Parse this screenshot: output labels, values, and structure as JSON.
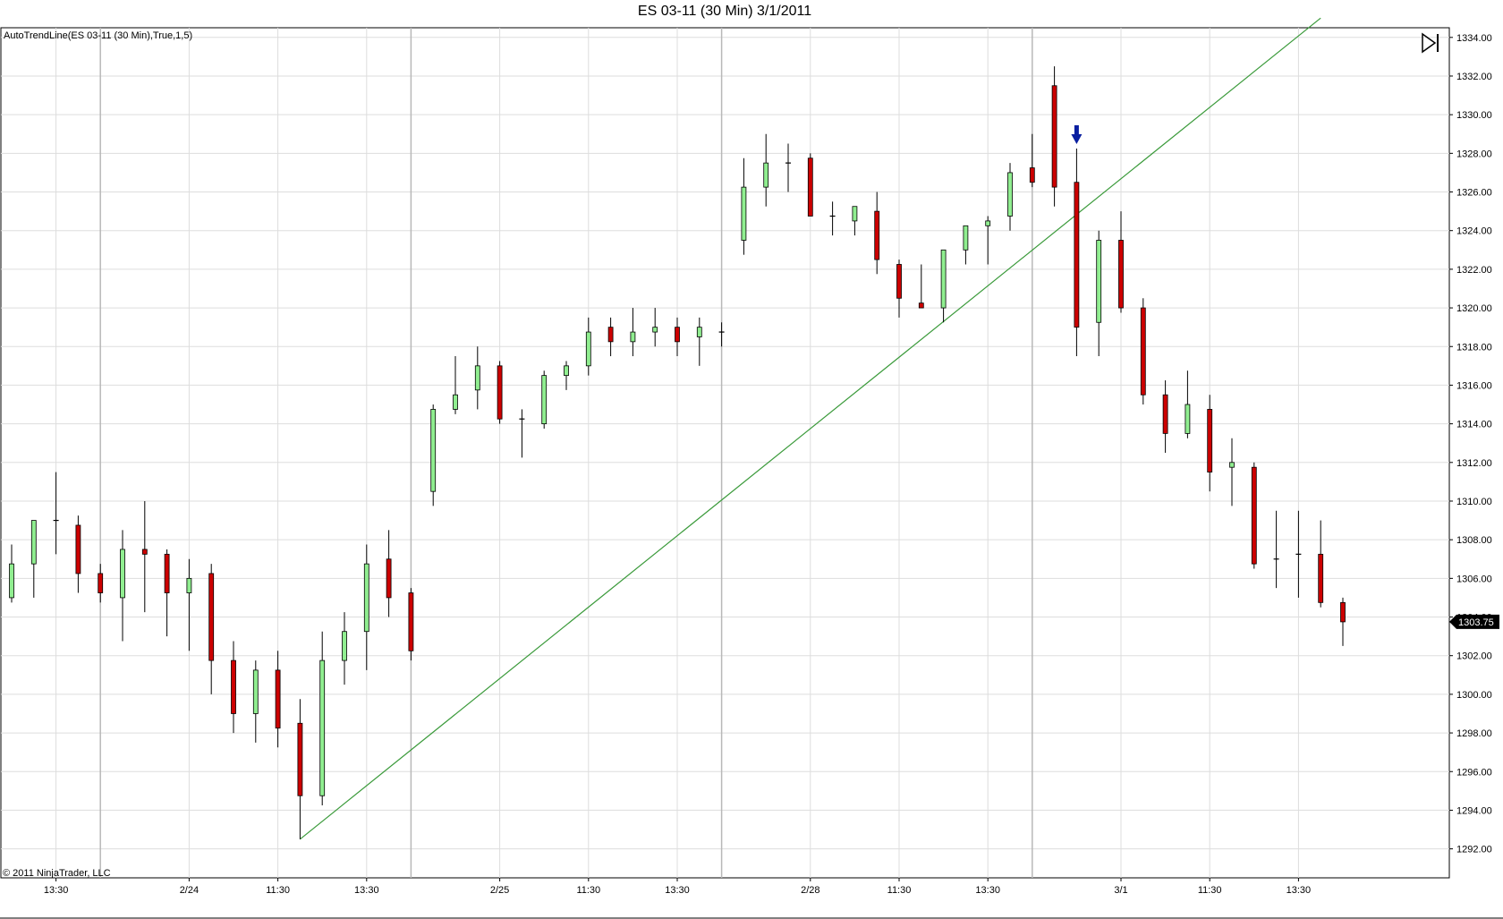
{
  "title": "ES 03-11 (30 Min)  3/1/2011",
  "indicator_label": "AutoTrendLine(ES 03-11 (30 Min),True,1,5)",
  "copyright": "© 2011 NinjaTrader, LLC",
  "last_price_label": "1303.75",
  "colors": {
    "up": "#90EE90",
    "down": "#CC0000",
    "trend": "#3A9A3A",
    "arrow": "#0A1FA0"
  },
  "chart_data": {
    "type": "candlestick",
    "symbol": "ES 03-11",
    "interval": "30 Min",
    "ylim": [
      1290.5,
      1334.5
    ],
    "y_ticks": [
      "1334.00",
      "1332.00",
      "1330.00",
      "1328.00",
      "1326.00",
      "1324.00",
      "1322.00",
      "1320.00",
      "1318.00",
      "1316.00",
      "1314.00",
      "1312.00",
      "1310.00",
      "1308.00",
      "1306.00",
      "1304.00",
      "1302.00",
      "1300.00",
      "1298.00",
      "1296.00",
      "1294.00",
      "1292.00"
    ],
    "x_ticks": [
      {
        "label": "13:30",
        "bar": 2
      },
      {
        "label": "2/24",
        "bar": 8
      },
      {
        "label": "11:30",
        "bar": 12
      },
      {
        "label": "13:30",
        "bar": 16
      },
      {
        "label": "2/25",
        "bar": 22
      },
      {
        "label": "11:30",
        "bar": 26
      },
      {
        "label": "13:30",
        "bar": 30
      },
      {
        "label": "2/28",
        "bar": 36
      },
      {
        "label": "11:30",
        "bar": 40
      },
      {
        "label": "13:30",
        "bar": 44
      },
      {
        "label": "3/1",
        "bar": 50
      },
      {
        "label": "11:30",
        "bar": 54
      },
      {
        "label": "13:30",
        "bar": 58
      }
    ],
    "session_breaks": [
      4,
      18,
      32,
      46
    ],
    "last_price": 1303.75,
    "trend_line": {
      "from": {
        "bar": 13,
        "price": 1292.5
      },
      "to": {
        "bar": 59,
        "price": 1335.0
      }
    },
    "signal_arrow": {
      "bar": 48,
      "direction": "down"
    },
    "candles": [
      {
        "o": 1305.0,
        "h": 1307.75,
        "l": 1304.75,
        "c": 1306.75
      },
      {
        "o": 1306.75,
        "h": 1309.0,
        "l": 1305.0,
        "c": 1309.0
      },
      {
        "o": 1309.0,
        "h": 1311.5,
        "l": 1307.25,
        "c": 1309.0
      },
      {
        "o": 1308.75,
        "h": 1309.25,
        "l": 1305.25,
        "c": 1306.25
      },
      {
        "o": 1306.25,
        "h": 1306.75,
        "l": 1304.75,
        "c": 1305.25
      },
      {
        "o": 1305.0,
        "h": 1308.5,
        "l": 1302.75,
        "c": 1307.5
      },
      {
        "o": 1307.5,
        "h": 1310.0,
        "l": 1304.25,
        "c": 1307.25
      },
      {
        "o": 1307.25,
        "h": 1307.5,
        "l": 1303.0,
        "c": 1305.25
      },
      {
        "o": 1305.25,
        "h": 1307.0,
        "l": 1302.25,
        "c": 1306.0
      },
      {
        "o": 1306.25,
        "h": 1306.75,
        "l": 1300.0,
        "c": 1301.75
      },
      {
        "o": 1301.75,
        "h": 1302.75,
        "l": 1298.0,
        "c": 1299.0
      },
      {
        "o": 1299.0,
        "h": 1301.75,
        "l": 1297.5,
        "c": 1301.25
      },
      {
        "o": 1301.25,
        "h": 1302.25,
        "l": 1297.25,
        "c": 1298.25
      },
      {
        "o": 1298.5,
        "h": 1299.75,
        "l": 1292.5,
        "c": 1294.75
      },
      {
        "o": 1294.75,
        "h": 1303.25,
        "l": 1294.25,
        "c": 1301.75
      },
      {
        "o": 1301.75,
        "h": 1304.25,
        "l": 1300.5,
        "c": 1303.25
      },
      {
        "o": 1303.25,
        "h": 1307.75,
        "l": 1301.25,
        "c": 1306.75
      },
      {
        "o": 1307.0,
        "h": 1308.5,
        "l": 1304.0,
        "c": 1305.0
      },
      {
        "o": 1305.25,
        "h": 1305.5,
        "l": 1301.75,
        "c": 1302.25
      },
      {
        "o": 1310.5,
        "h": 1315.0,
        "l": 1309.75,
        "c": 1314.75
      },
      {
        "o": 1314.75,
        "h": 1317.5,
        "l": 1314.5,
        "c": 1315.5
      },
      {
        "o": 1315.75,
        "h": 1318.0,
        "l": 1314.75,
        "c": 1317.0
      },
      {
        "o": 1317.0,
        "h": 1317.25,
        "l": 1314.0,
        "c": 1314.25
      },
      {
        "o": 1314.25,
        "h": 1314.75,
        "l": 1312.25,
        "c": 1314.25
      },
      {
        "o": 1314.0,
        "h": 1316.75,
        "l": 1313.75,
        "c": 1316.5
      },
      {
        "o": 1316.5,
        "h": 1317.25,
        "l": 1315.75,
        "c": 1317.0
      },
      {
        "o": 1317.0,
        "h": 1319.5,
        "l": 1316.5,
        "c": 1318.75
      },
      {
        "o": 1319.0,
        "h": 1319.5,
        "l": 1317.5,
        "c": 1318.25
      },
      {
        "o": 1318.25,
        "h": 1320.0,
        "l": 1317.5,
        "c": 1318.75
      },
      {
        "o": 1318.75,
        "h": 1320.0,
        "l": 1318.0,
        "c": 1319.0
      },
      {
        "o": 1319.0,
        "h": 1319.5,
        "l": 1317.5,
        "c": 1318.25
      },
      {
        "o": 1318.5,
        "h": 1319.5,
        "l": 1317.0,
        "c": 1319.0
      },
      {
        "o": 1318.75,
        "h": 1319.25,
        "l": 1318.0,
        "c": 1318.75
      },
      {
        "o": 1323.5,
        "h": 1327.75,
        "l": 1322.75,
        "c": 1326.25
      },
      {
        "o": 1326.25,
        "h": 1329.0,
        "l": 1325.25,
        "c": 1327.5
      },
      {
        "o": 1327.5,
        "h": 1328.5,
        "l": 1326.0,
        "c": 1327.5
      },
      {
        "o": 1327.75,
        "h": 1328.0,
        "l": 1324.75,
        "c": 1324.75
      },
      {
        "o": 1324.75,
        "h": 1325.5,
        "l": 1323.75,
        "c": 1324.75
      },
      {
        "o": 1324.5,
        "h": 1325.25,
        "l": 1323.75,
        "c": 1325.25
      },
      {
        "o": 1325.0,
        "h": 1326.0,
        "l": 1321.75,
        "c": 1322.5
      },
      {
        "o": 1322.25,
        "h": 1322.5,
        "l": 1319.5,
        "c": 1320.5
      },
      {
        "o": 1320.25,
        "h": 1322.25,
        "l": 1320.0,
        "c": 1320.0
      },
      {
        "o": 1320.0,
        "h": 1323.0,
        "l": 1319.25,
        "c": 1323.0
      },
      {
        "o": 1323.0,
        "h": 1324.25,
        "l": 1322.25,
        "c": 1324.25
      },
      {
        "o": 1324.25,
        "h": 1324.75,
        "l": 1322.25,
        "c": 1324.5
      },
      {
        "o": 1324.75,
        "h": 1327.5,
        "l": 1324.0,
        "c": 1327.0
      },
      {
        "o": 1327.25,
        "h": 1329.0,
        "l": 1326.25,
        "c": 1326.5
      },
      {
        "o": 1331.5,
        "h": 1332.5,
        "l": 1325.25,
        "c": 1326.25
      },
      {
        "o": 1326.5,
        "h": 1328.25,
        "l": 1317.5,
        "c": 1319.0
      },
      {
        "o": 1319.25,
        "h": 1324.0,
        "l": 1317.5,
        "c": 1323.5
      },
      {
        "o": 1323.5,
        "h": 1325.0,
        "l": 1319.75,
        "c": 1320.0
      },
      {
        "o": 1320.0,
        "h": 1320.5,
        "l": 1315.0,
        "c": 1315.5
      },
      {
        "o": 1315.5,
        "h": 1316.25,
        "l": 1312.5,
        "c": 1313.5
      },
      {
        "o": 1313.5,
        "h": 1316.75,
        "l": 1313.25,
        "c": 1315.0
      },
      {
        "o": 1314.75,
        "h": 1315.5,
        "l": 1310.5,
        "c": 1311.5
      },
      {
        "o": 1311.75,
        "h": 1313.25,
        "l": 1309.75,
        "c": 1312.0
      },
      {
        "o": 1311.75,
        "h": 1312.0,
        "l": 1306.5,
        "c": 1306.75
      },
      {
        "o": 1307.0,
        "h": 1309.5,
        "l": 1305.5,
        "c": 1307.0
      },
      {
        "o": 1307.25,
        "h": 1309.5,
        "l": 1305.0,
        "c": 1307.25
      },
      {
        "o": 1307.25,
        "h": 1309.0,
        "l": 1304.5,
        "c": 1304.75
      },
      {
        "o": 1304.75,
        "h": 1305.0,
        "l": 1302.5,
        "c": 1303.75
      }
    ]
  }
}
